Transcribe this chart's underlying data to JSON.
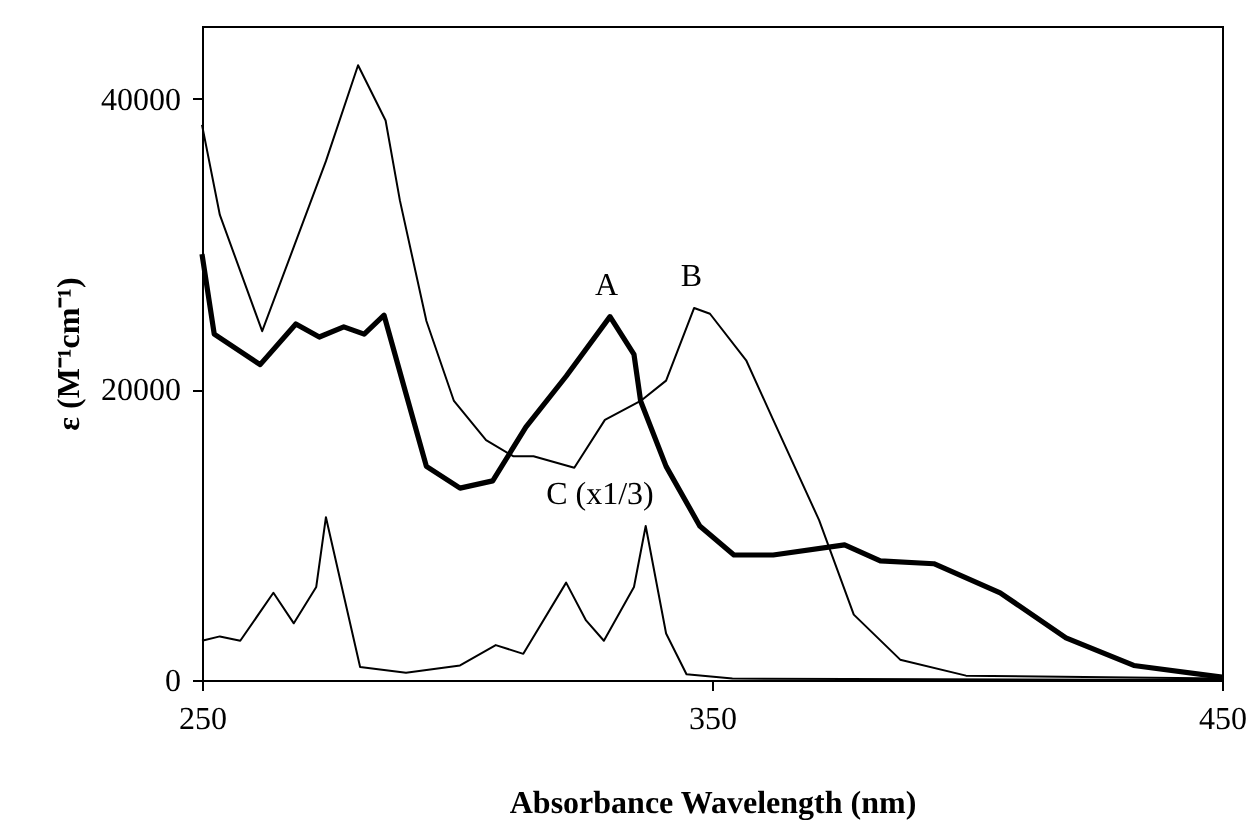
{
  "chart_data": {
    "type": "line",
    "xlabel": "Absorbance Wavelength (nm)",
    "ylabel": "ε (M⁻¹cm⁻¹)",
    "xlim": [
      250,
      450
    ],
    "xticks": [
      250,
      350,
      450
    ],
    "ylim": [
      0,
      45000
    ],
    "yticks": [
      0,
      20000,
      40000
    ],
    "grid": false,
    "marker": "none",
    "line_style": "solid",
    "annotations": [
      {
        "text": "A",
        "x": 330,
        "y": 25000
      },
      {
        "text": "B",
        "x": 346.5,
        "y": 25600
      },
      {
        "text": "C (x1/3)",
        "x": 337,
        "y": 10600
      }
    ],
    "series": [
      {
        "color": "#000000",
        "x": [
          250,
          252.4,
          261.4,
          268.4,
          273,
          277.8,
          281.8,
          285.7,
          290,
          294,
          300.6,
          307,
          313.5,
          321.4,
          330,
          334.7,
          336,
          341,
          347.6,
          354.3,
          362,
          376,
          383,
          393.5,
          406.5,
          419.4,
          432.7,
          450
        ],
        "values": [
          29300,
          23800,
          21700,
          24500,
          23600,
          24300,
          23800,
          25100,
          19700,
          14700,
          13200,
          13700,
          17400,
          20900,
          25000,
          22400,
          19200,
          14700,
          10600,
          8600,
          8600,
          9300,
          8200,
          8000,
          6000,
          2900,
          1000,
          200
        ]
      },
      {
        "color": "#000000",
        "x": [
          250,
          253.5,
          261.8,
          268,
          274.3,
          280.6,
          286,
          288.8,
          294,
          299.4,
          305.7,
          311,
          315,
          323,
          329,
          336,
          341,
          346.5,
          349.6,
          356.7,
          362,
          371,
          377.8,
          386.9,
          399.8,
          450
        ],
        "values": [
          38200,
          32000,
          24000,
          29800,
          35700,
          42300,
          38500,
          33000,
          24700,
          19200,
          16500,
          15400,
          15400,
          14600,
          17900,
          19200,
          20600,
          25600,
          25200,
          22000,
          17900,
          11000,
          4500,
          1400,
          300,
          100
        ]
      },
      {
        "color": "#000000",
        "x": [
          250,
          253.5,
          257.5,
          264,
          268,
          272.4,
          274.3,
          278,
          281,
          290,
          300.6,
          307.6,
          313,
          321.4,
          325.3,
          328.8,
          334.7,
          337,
          341,
          345,
          354,
          450
        ],
        "values": [
          2700,
          3000,
          2700,
          6000,
          3900,
          6400,
          11200,
          5500,
          900,
          500,
          1000,
          2400,
          1800,
          6700,
          4100,
          2700,
          6400,
          10600,
          3200,
          400,
          100,
          0
        ]
      }
    ]
  }
}
